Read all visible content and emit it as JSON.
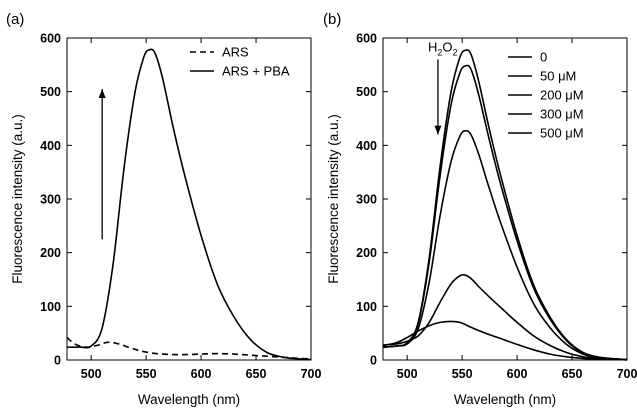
{
  "chart_data": [
    {
      "type": "line",
      "panel_label": "(a)",
      "xlabel": "Wavelength (nm)",
      "ylabel": "Fluorescence intensity (a.u.)",
      "xlim": [
        478,
        700
      ],
      "ylim": [
        0,
        600
      ],
      "xticks": [
        500,
        550,
        600,
        650,
        700
      ],
      "yticks": [
        0,
        100,
        200,
        300,
        400,
        500,
        600
      ],
      "grid": false,
      "legend_position": "top-right",
      "series": [
        {
          "name": "ARS",
          "style": "dashed",
          "x": [
            478,
            485,
            495,
            505,
            515,
            525,
            535,
            545,
            555,
            565,
            575,
            585,
            600,
            615,
            630,
            645,
            660,
            675,
            690,
            700
          ],
          "y": [
            42,
            30,
            24,
            27,
            33,
            30,
            23,
            17,
            13,
            11,
            10,
            10,
            11,
            12,
            11,
            9,
            7,
            5,
            3,
            2
          ]
        },
        {
          "name": "ARS + PBA",
          "style": "solid",
          "x": [
            478,
            490,
            500,
            510,
            520,
            530,
            540,
            548,
            553,
            558,
            565,
            575,
            585,
            600,
            615,
            630,
            645,
            660,
            675,
            690,
            700
          ],
          "y": [
            24,
            24,
            26,
            60,
            180,
            360,
            500,
            565,
            578,
            572,
            525,
            430,
            345,
            232,
            140,
            80,
            38,
            14,
            5,
            2,
            1
          ]
        }
      ],
      "annotation": {
        "type": "arrow-up",
        "x": 510,
        "y_from": 225,
        "y_to": 505
      }
    },
    {
      "type": "line",
      "panel_label": "(b)",
      "xlabel": "Wavelength (nm)",
      "ylabel": "Fluorescence intensity (a.u.)",
      "xlim": [
        478,
        700
      ],
      "ylim": [
        0,
        600
      ],
      "xticks": [
        500,
        550,
        600,
        650,
        700
      ],
      "yticks": [
        0,
        100,
        200,
        300,
        400,
        500,
        600
      ],
      "grid": false,
      "legend_position": "top-right",
      "series": [
        {
          "name": "0",
          "x": [
            478,
            490,
            500,
            510,
            520,
            530,
            540,
            548,
            553,
            558,
            565,
            575,
            585,
            600,
            615,
            630,
            645,
            660,
            675,
            690,
            700
          ],
          "y": [
            24,
            26,
            32,
            70,
            190,
            362,
            500,
            564,
            577,
            570,
            520,
            428,
            344,
            232,
            140,
            80,
            38,
            14,
            5,
            2,
            1
          ]
        },
        {
          "name": "50 μM",
          "x": [
            478,
            490,
            500,
            510,
            520,
            530,
            540,
            548,
            553,
            558,
            565,
            575,
            585,
            600,
            615,
            630,
            645,
            660,
            675,
            690,
            700
          ],
          "y": [
            24,
            26,
            32,
            68,
            182,
            345,
            476,
            535,
            548,
            542,
            495,
            408,
            328,
            222,
            134,
            76,
            36,
            13,
            5,
            2,
            1
          ]
        },
        {
          "name": "200 μM",
          "x": [
            478,
            490,
            500,
            510,
            520,
            530,
            540,
            548,
            553,
            558,
            565,
            575,
            585,
            600,
            615,
            630,
            645,
            660,
            675,
            690,
            700
          ],
          "y": [
            24,
            26,
            30,
            58,
            145,
            270,
            370,
            417,
            427,
            420,
            384,
            318,
            256,
            173,
            105,
            60,
            29,
            11,
            4,
            2,
            1
          ]
        },
        {
          "name": "300 μM",
          "x": [
            478,
            490,
            500,
            510,
            520,
            530,
            540,
            548,
            553,
            558,
            565,
            575,
            585,
            600,
            615,
            630,
            645,
            660,
            675,
            690,
            700
          ],
          "y": [
            28,
            30,
            35,
            45,
            70,
            108,
            142,
            157,
            158,
            152,
            137,
            117,
            98,
            70,
            45,
            27,
            14,
            6,
            3,
            1,
            1
          ]
        },
        {
          "name": "500 μM",
          "x": [
            478,
            490,
            500,
            510,
            520,
            530,
            540,
            548,
            555,
            565,
            575,
            585,
            600,
            615,
            630,
            645,
            660,
            675,
            690,
            700
          ],
          "y": [
            27,
            32,
            42,
            54,
            64,
            70,
            72,
            70,
            64,
            55,
            47,
            40,
            29,
            19,
            11,
            6,
            3,
            1,
            1,
            0
          ]
        }
      ],
      "annotation": {
        "type": "arrow-down",
        "label_main": "H",
        "label_sub": "2",
        "label_tail": "O",
        "label_sub2": "2",
        "x": 528,
        "y_from": 560,
        "y_to": 420
      }
    }
  ]
}
